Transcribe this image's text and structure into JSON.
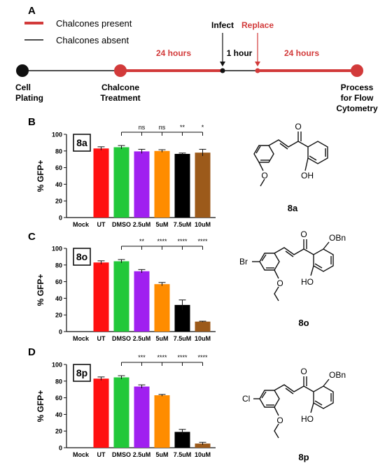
{
  "panels": {
    "a": "A",
    "b": "B",
    "c": "C",
    "d": "D"
  },
  "timeline": {
    "legend_present": "Chalcones present",
    "legend_absent": "Chalcones absent",
    "infect": "Infect",
    "replace": "Replace",
    "interval_1": "24 hours",
    "interval_2": "1 hour",
    "interval_3": "24 hours",
    "stage_1_l1": "Cell",
    "stage_1_l2": "Plating",
    "stage_2_l1": "Chalcone",
    "stage_2_l2": "Treatment",
    "stage_3_l1": "Process",
    "stage_3_l2": "for Flow",
    "stage_3_l3": "Cytometry",
    "colors": {
      "present": "#d23a3a",
      "absent": "#111111"
    }
  },
  "compounds": [
    {
      "label": "8a",
      "substituent": "",
      "groups": [
        "O",
        "O",
        "OH"
      ]
    },
    {
      "label": "8o",
      "substituent": "Br",
      "groups": [
        "O",
        "OBn",
        "O",
        "HO"
      ]
    },
    {
      "label": "8p",
      "substituent": "Cl",
      "groups": [
        "O",
        "OBn",
        "O",
        "HO"
      ]
    }
  ],
  "chart_data": [
    {
      "type": "bar",
      "tag": "8a",
      "categories": [
        "Mock",
        "UT",
        "DMSO",
        "2.5uM",
        "5uM",
        "7.5uM",
        "10uM"
      ],
      "values": [
        0,
        83,
        84.5,
        79.5,
        80,
        76.5,
        78
      ],
      "errors": [
        0,
        2,
        2,
        2.5,
        1.5,
        1,
        4
      ],
      "colors": [
        "#ffffff",
        "#ff1010",
        "#22c83a",
        "#a020f0",
        "#ff8c00",
        "#000000",
        "#9c5a1a"
      ],
      "ylabel": "% GFP+",
      "ylim": [
        0,
        100
      ],
      "yticks": [
        "0",
        "20",
        "40",
        "60",
        "80",
        "100"
      ],
      "significance": [
        "ns",
        "ns",
        "**",
        "*"
      ]
    },
    {
      "type": "bar",
      "tag": "8o",
      "categories": [
        "Mock",
        "UT",
        "DMSO",
        "2.5uM",
        "5uM",
        "7.5uM",
        "10uM"
      ],
      "values": [
        0,
        83,
        84.5,
        72.5,
        57,
        32,
        12
      ],
      "errors": [
        0,
        2,
        2,
        2,
        2,
        6,
        0.5
      ],
      "colors": [
        "#ffffff",
        "#ff1010",
        "#22c83a",
        "#a020f0",
        "#ff8c00",
        "#000000",
        "#9c5a1a"
      ],
      "ylabel": "% GFP+",
      "ylim": [
        0,
        100
      ],
      "yticks": [
        "0",
        "20",
        "40",
        "60",
        "80",
        "100"
      ],
      "significance": [
        "**",
        "****",
        "****",
        "****"
      ]
    },
    {
      "type": "bar",
      "tag": "8p",
      "categories": [
        "Mock",
        "UT",
        "DMSO",
        "2.5uM",
        "5uM",
        "7.5uM",
        "10uM"
      ],
      "values": [
        0,
        83,
        84.5,
        73.5,
        63,
        19,
        5
      ],
      "errors": [
        0,
        2,
        2,
        2,
        1,
        3,
        1.5
      ],
      "colors": [
        "#ffffff",
        "#ff1010",
        "#22c83a",
        "#a020f0",
        "#ff8c00",
        "#000000",
        "#9c5a1a"
      ],
      "ylabel": "% GFP+",
      "ylim": [
        0,
        100
      ],
      "yticks": [
        "0",
        "20",
        "40",
        "60",
        "80",
        "100"
      ],
      "significance": [
        "***",
        "****",
        "****",
        "****"
      ]
    }
  ]
}
